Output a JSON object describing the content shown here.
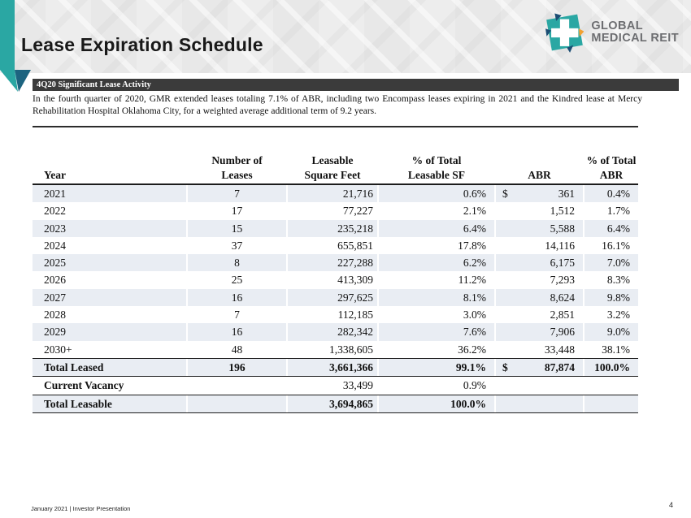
{
  "slide": {
    "title": "Lease Expiration Schedule",
    "footer": "January 2021 | Investor Presentation",
    "page_number": "4"
  },
  "logo": {
    "name_line1": "GLOBAL",
    "name_line2": "MEDICAL REIT",
    "colors": {
      "teal": "#2aa7a3",
      "navy": "#1c4e74",
      "orange": "#f2a131",
      "text_gray": "#6d6e71"
    }
  },
  "callout": {
    "header": "4Q20 Significant Lease Activity",
    "body": "In the fourth quarter of 2020, GMR extended leases totaling 7.1% of ABR, including two Encompass leases expiring in 2021 and the Kindred lease at Mercy Rehabilitation Hospital Oklahoma City, for a weighted average additional term of 9.2 years."
  },
  "table": {
    "columns": [
      {
        "line1": "",
        "line2": "Year"
      },
      {
        "line1": "Number of",
        "line2": "Leases"
      },
      {
        "line1": "Leasable",
        "line2": "Square Feet"
      },
      {
        "line1": "% of Total",
        "line2": "Leasable SF"
      },
      {
        "line1": "",
        "line2": "ABR"
      },
      {
        "line1": "% of Total",
        "line2": "ABR"
      }
    ],
    "rows": [
      {
        "year": "2021",
        "leases": "7",
        "sf": "21,716",
        "pct_sf": "0.6%",
        "dollar": "$",
        "abr": "361",
        "pct_abr": "0.4%",
        "shaded": true,
        "emphasis": "none"
      },
      {
        "year": "2022",
        "leases": "17",
        "sf": "77,227",
        "pct_sf": "2.1%",
        "dollar": "",
        "abr": "1,512",
        "pct_abr": "1.7%",
        "shaded": false,
        "emphasis": "none"
      },
      {
        "year": "2023",
        "leases": "15",
        "sf": "235,218",
        "pct_sf": "6.4%",
        "dollar": "",
        "abr": "5,588",
        "pct_abr": "6.4%",
        "shaded": true,
        "emphasis": "none"
      },
      {
        "year": "2024",
        "leases": "37",
        "sf": "655,851",
        "pct_sf": "17.8%",
        "dollar": "",
        "abr": "14,116",
        "pct_abr": "16.1%",
        "shaded": false,
        "emphasis": "none"
      },
      {
        "year": "2025",
        "leases": "8",
        "sf": "227,288",
        "pct_sf": "6.2%",
        "dollar": "",
        "abr": "6,175",
        "pct_abr": "7.0%",
        "shaded": true,
        "emphasis": "none"
      },
      {
        "year": "2026",
        "leases": "25",
        "sf": "413,309",
        "pct_sf": "11.2%",
        "dollar": "",
        "abr": "7,293",
        "pct_abr": "8.3%",
        "shaded": false,
        "emphasis": "none"
      },
      {
        "year": "2027",
        "leases": "16",
        "sf": "297,625",
        "pct_sf": "8.1%",
        "dollar": "",
        "abr": "8,624",
        "pct_abr": "9.8%",
        "shaded": true,
        "emphasis": "none"
      },
      {
        "year": "2028",
        "leases": "7",
        "sf": "112,185",
        "pct_sf": "3.0%",
        "dollar": "",
        "abr": "2,851",
        "pct_abr": "3.2%",
        "shaded": false,
        "emphasis": "none"
      },
      {
        "year": "2029",
        "leases": "16",
        "sf": "282,342",
        "pct_sf": "7.6%",
        "dollar": "",
        "abr": "7,906",
        "pct_abr": "9.0%",
        "shaded": true,
        "emphasis": "none"
      },
      {
        "year": "2030+",
        "leases": "48",
        "sf": "1,338,605",
        "pct_sf": "36.2%",
        "dollar": "",
        "abr": "33,448",
        "pct_abr": "38.1%",
        "shaded": false,
        "emphasis": "none"
      },
      {
        "year": "Total Leased",
        "leases": "196",
        "sf": "3,661,366",
        "pct_sf": "99.1%",
        "dollar": "$",
        "abr": "87,874",
        "pct_abr": "100.0%",
        "shaded": true,
        "emphasis": "all",
        "rule_above": true,
        "rule_below": true
      },
      {
        "year": "Current Vacancy",
        "leases": "",
        "sf": "33,499",
        "pct_sf": "0.9%",
        "dollar": "",
        "abr": "",
        "pct_abr": "",
        "shaded": false,
        "emphasis": "label",
        "rule_below": true
      },
      {
        "year": "Total Leasable",
        "leases": "",
        "sf": "3,694,865",
        "pct_sf": "100.0%",
        "dollar": "",
        "abr": "",
        "pct_abr": "",
        "shaded": true,
        "emphasis": "all",
        "rule_below": true
      }
    ]
  }
}
